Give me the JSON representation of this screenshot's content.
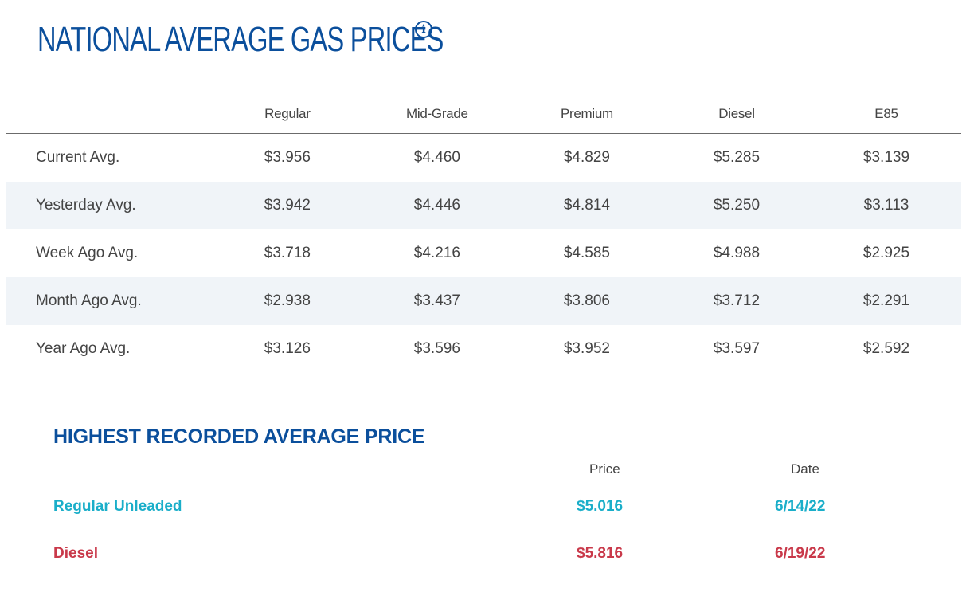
{
  "header": {
    "title": "NATIONAL AVERAGE GAS PRICES",
    "info_icon": "info-icon"
  },
  "prices_table": {
    "columns": [
      "Regular",
      "Mid-Grade",
      "Premium",
      "Diesel",
      "E85"
    ],
    "rows": [
      {
        "label": "Current Avg.",
        "values": [
          "$3.956",
          "$4.460",
          "$4.829",
          "$5.285",
          "$3.139"
        ]
      },
      {
        "label": "Yesterday Avg.",
        "values": [
          "$3.942",
          "$4.446",
          "$4.814",
          "$5.250",
          "$3.113"
        ]
      },
      {
        "label": "Week Ago Avg.",
        "values": [
          "$3.718",
          "$4.216",
          "$4.585",
          "$4.988",
          "$2.925"
        ]
      },
      {
        "label": "Month Ago Avg.",
        "values": [
          "$2.938",
          "$3.437",
          "$3.806",
          "$3.712",
          "$2.291"
        ]
      },
      {
        "label": "Year Ago Avg.",
        "values": [
          "$3.126",
          "$3.596",
          "$3.952",
          "$3.597",
          "$2.592"
        ]
      }
    ]
  },
  "highest": {
    "title": "HIGHEST RECORDED AVERAGE PRICE",
    "columns": {
      "price": "Price",
      "date": "Date"
    },
    "rows": [
      {
        "label": "Regular Unleaded",
        "price": "$5.016",
        "date": "6/14/22",
        "color": "#1aaec9"
      },
      {
        "label": "Diesel",
        "price": "$5.816",
        "date": "6/19/22",
        "color": "#c9394a"
      }
    ]
  },
  "colors": {
    "brand_blue": "#0b4f9c",
    "row_shade": "#f0f4f8"
  }
}
